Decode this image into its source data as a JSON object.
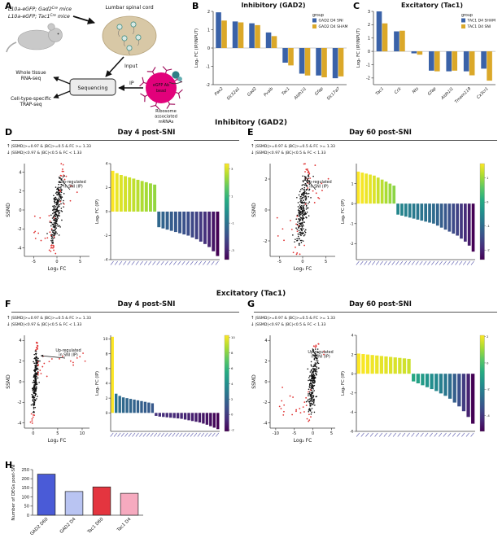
{
  "labels": {
    "a": "A",
    "b": "B",
    "c": "C",
    "d": "D",
    "e": "E",
    "f": "F",
    "g": "G",
    "h": "H"
  },
  "headings": {
    "inhibitory": "Inhibitory (GAD2)",
    "excitatory": "Excitatory (Tac1)",
    "day4": "Day 4 post-SNI",
    "day60": "Day 60 post-SNI"
  },
  "panel_a": {
    "mice1_pre": "L10a-eGFP; Gad2",
    "mice1_sup": "Cre",
    "mice1_post": " mice",
    "mice2_pre": "L10a-eGFP; Tac1",
    "mice2_sup": "Cre",
    "mice2_post": " mice",
    "lumbar": "Lumbar spinal cord",
    "input": "Input",
    "sequencing": "Sequencing",
    "ip": "IP",
    "whole_tissue_1": "Whole tissue",
    "whole_tissue_2": "RNA-seq",
    "cell_type_1": "Cell-type-specific",
    "cell_type_2": "TRAP-seq",
    "bead_1": "eGFP Ab",
    "bead_2": "bead",
    "ribosome_1": "Ribosome",
    "ribosome_2": "associated",
    "ribosome_3": "mRNAs"
  },
  "deg_annotations": {
    "up_arrow": "↑",
    "down_arrow": "↓",
    "up": "|SSMD|>=0.97 & |BC|>=0.5 & FC >= 1.33",
    "down": "|SSMD|<0.97 & |BC|<0.5 & FC < 1.33",
    "upregulated_1": "Up-regulated",
    "upregulated_2": "in SNI (IP)"
  },
  "chart_data": [
    {
      "id": "B",
      "type": "bar",
      "title": "Inhibitory (GAD2)",
      "ylabel": "Log₂ FC (IP/INPUT)",
      "ylim": [
        -2,
        2
      ],
      "yticks": [
        -2,
        -1,
        0,
        1,
        2
      ],
      "categories": [
        "Pax2",
        "Slc32a1",
        "Gad2",
        "Pvalb",
        "Tac1",
        "Aldh1l1",
        "Gfap",
        "Slc17a7"
      ],
      "legend_title": "group",
      "legend_position": "right",
      "series": [
        {
          "name": "GAD2 D4 SNI",
          "color": "#3a62a8",
          "values": [
            1.95,
            1.45,
            1.35,
            0.85,
            -0.8,
            -1.4,
            -1.5,
            -1.65
          ]
        },
        {
          "name": "GAD2 D4 SHAM",
          "color": "#dba829",
          "values": [
            1.5,
            1.4,
            1.25,
            0.65,
            -0.95,
            -1.5,
            -1.6,
            -1.55
          ]
        }
      ]
    },
    {
      "id": "C",
      "type": "bar",
      "title": "Excitatory (Tac1)",
      "ylabel": "Log₂ FC (IP/INPUT)",
      "ylim": [
        -2.5,
        3
      ],
      "yticks": [
        -2,
        -1,
        0,
        1,
        2,
        3
      ],
      "categories": [
        "Tac1",
        "Cck",
        "Nts",
        "Gfap",
        "Aldh1l1",
        "Tmem119",
        "Cx3cr1"
      ],
      "legend_title": "group",
      "legend_position": "right",
      "series": [
        {
          "name": "TAC1 D4 SHAM",
          "color": "#3a62a8",
          "values": [
            3.0,
            1.5,
            -0.15,
            -1.45,
            -1.5,
            -1.5,
            -1.3
          ]
        },
        {
          "name": "TAC1 D4 SNI",
          "color": "#dba829",
          "values": [
            2.1,
            1.55,
            -0.25,
            -1.5,
            -1.45,
            -1.8,
            -2.2
          ]
        }
      ]
    },
    {
      "id": "D_scatter",
      "type": "scatter",
      "xlabel": "Log₂ FC",
      "ylabel": "SSMD",
      "xlim": [
        -7,
        7
      ],
      "xticks": [
        -5,
        0,
        5
      ],
      "ylim": [
        -4.9,
        4.9
      ],
      "yticks": [
        -4,
        -2,
        0,
        2,
        4
      ],
      "point_colors": {
        "normal": "#111111",
        "significant": "#e03434"
      },
      "cloud": {
        "seed": 7,
        "n": 280,
        "cx": 0,
        "x_slope": 0.5,
        "x_noise": 0.45,
        "y_scale": 1.9,
        "y_noise": 0.5,
        "out_n": 26,
        "out_x": 5,
        "out_side": "both"
      }
    },
    {
      "id": "D_bars",
      "type": "bar",
      "ylabel": "Log₂ FC (IP)",
      "ylim": [
        -4,
        4
      ],
      "yticks": [
        -4,
        -2,
        0,
        2,
        4
      ],
      "colormap": "viridis",
      "xtick_labels_illegible": true,
      "values": [
        3.4,
        3.2,
        3.05,
        2.95,
        2.85,
        2.75,
        2.65,
        2.55,
        2.45,
        2.35,
        2.25,
        -1.3,
        -1.4,
        -1.5,
        -1.6,
        -1.7,
        -1.8,
        -1.9,
        -2.0,
        -2.15,
        -2.3,
        -2.5,
        -2.7,
        -2.95,
        -3.3,
        -3.7
      ]
    },
    {
      "id": "E_scatter",
      "type": "scatter",
      "xlabel": "Log₂ FC",
      "ylabel": "SSMD",
      "xlim": [
        -7,
        7
      ],
      "xticks": [
        -5,
        0,
        5
      ],
      "ylim": [
        -3,
        3
      ],
      "yticks": [
        -2,
        0,
        2
      ],
      "point_colors": {
        "normal": "#111111",
        "significant": "#e03434"
      },
      "cloud": {
        "seed": 11,
        "n": 280,
        "cx": 0,
        "x_slope": 0.5,
        "x_noise": 0.5,
        "y_scale": 1.2,
        "y_noise": 0.35,
        "out_n": 24,
        "out_x": 5.5,
        "out_side": "both"
      }
    },
    {
      "id": "E_bars",
      "type": "bar",
      "ylabel": "Log₂ FC (IP)",
      "ylim": [
        -2.8,
        2
      ],
      "yticks": [
        -2,
        -1,
        0,
        1
      ],
      "colormap": "viridis",
      "xtick_labels_illegible": true,
      "values": [
        1.6,
        1.55,
        1.5,
        1.45,
        1.4,
        1.3,
        1.2,
        1.1,
        1.0,
        0.9,
        -0.55,
        -0.6,
        -0.65,
        -0.7,
        -0.75,
        -0.8,
        -0.85,
        -0.9,
        -0.95,
        -1.0,
        -1.1,
        -1.2,
        -1.3,
        -1.4,
        -1.5,
        -1.6,
        -1.75,
        -1.9,
        -2.1,
        -2.4
      ]
    },
    {
      "id": "F_scatter",
      "type": "scatter",
      "xlabel": "Log₂ FC",
      "ylabel": "SSMD",
      "xlim": [
        -1.8,
        11.5
      ],
      "xticks": [
        0,
        5,
        10
      ],
      "ylim": [
        -4.5,
        4.5
      ],
      "yticks": [
        -4,
        -2,
        0,
        2,
        4
      ],
      "point_colors": {
        "normal": "#111111",
        "significant": "#e03434"
      },
      "cloud": {
        "seed": 23,
        "n": 250,
        "cx": 0.4,
        "x_slope": 0.18,
        "x_noise": 0.22,
        "y_scale": 1.6,
        "y_noise": 0.4,
        "out_n": 22,
        "out_x": 10,
        "out_side": "pos"
      }
    },
    {
      "id": "F_bars",
      "type": "bar",
      "ylabel": "Log₂ FC (IP)",
      "ylim": [
        -2.5,
        10.5
      ],
      "yticks": [
        0,
        2,
        4,
        6,
        8,
        10
      ],
      "colormap": "viridis",
      "xtick_labels_illegible": true,
      "values": [
        10.3,
        2.6,
        2.3,
        2.1,
        2.0,
        1.9,
        1.8,
        1.7,
        1.6,
        1.5,
        1.4,
        1.3,
        -0.4,
        -0.5,
        -0.55,
        -0.6,
        -0.65,
        -0.7,
        -0.75,
        -0.8,
        -0.9,
        -1.0,
        -1.1,
        -1.2,
        -1.3,
        -1.45,
        -1.6,
        -1.8,
        -2.0,
        -2.2
      ]
    },
    {
      "id": "G_scatter",
      "type": "scatter",
      "xlabel": "Log₂ FC",
      "ylabel": "SSMD",
      "xlim": [
        -11.5,
        6
      ],
      "xticks": [
        -10,
        -5,
        0,
        5
      ],
      "ylim": [
        -4.5,
        4.5
      ],
      "yticks": [
        -4,
        -2,
        0,
        2,
        4
      ],
      "point_colors": {
        "normal": "#111111",
        "significant": "#e03434"
      },
      "cloud": {
        "seed": 31,
        "n": 250,
        "cx": 0,
        "x_slope": 0.5,
        "x_noise": 0.5,
        "y_scale": 1.7,
        "y_noise": 0.45,
        "out_n": 24,
        "out_x": 9,
        "out_side": "neg"
      }
    },
    {
      "id": "G_bars",
      "type": "bar",
      "ylabel": "Log₂ FC (IP)",
      "ylim": [
        -6,
        4
      ],
      "yticks": [
        -6,
        -4,
        -2,
        0,
        2,
        4
      ],
      "colormap": "viridis",
      "xtick_labels_illegible": true,
      "values": [
        2.1,
        2.05,
        2.0,
        1.95,
        1.9,
        1.85,
        1.8,
        1.75,
        1.7,
        1.65,
        1.6,
        1.55,
        -0.8,
        -1.0,
        -1.2,
        -1.4,
        -1.6,
        -1.8,
        -2.05,
        -2.3,
        -2.6,
        -3.0,
        -3.4,
        -3.9,
        -4.5,
        -5.2
      ]
    },
    {
      "id": "H",
      "type": "bar",
      "ylabel": "Number of DEGs post-SNI",
      "ylim": [
        0,
        250
      ],
      "yticks": [
        0,
        50,
        100,
        150,
        200,
        250
      ],
      "categories": [
        "GAD2 D60",
        "GAD2 D4",
        "Tac1 D60",
        "Tac1 D4"
      ],
      "values": [
        225,
        130,
        155,
        120
      ],
      "colors": [
        "#4a5bd7",
        "#b9c4f2",
        "#e4353f",
        "#f6aabf"
      ]
    }
  ]
}
